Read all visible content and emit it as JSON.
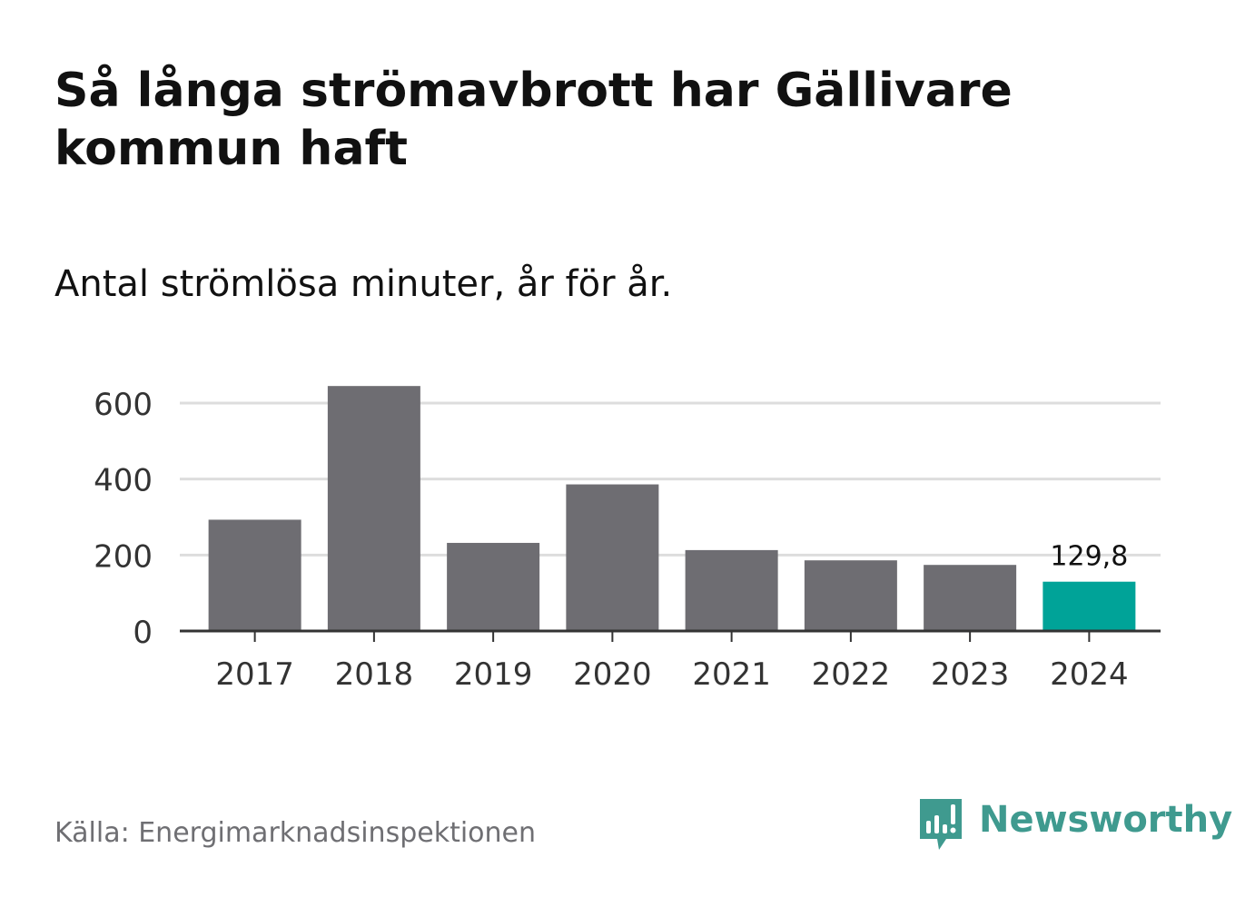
{
  "title": "Så långa strömavbrott har Gällivare kommun haft",
  "subtitle": "Antal strömlösa minuter, år för år.",
  "source": "Källa: Energimarknadsinspektionen",
  "brand": {
    "name": "Newsworthy",
    "icon": "newsworthy-logo-icon",
    "color": "#3f9a8f"
  },
  "colors": {
    "bar": "#6e6d72",
    "highlight": "#00a398",
    "grid": "#dddddd",
    "axis": "#333333",
    "text": "#333333"
  },
  "chart_data": {
    "type": "bar",
    "title": "Så långa strömavbrott har Gällivare kommun haft",
    "subtitle": "Antal strömlösa minuter, år för år.",
    "xlabel": "",
    "ylabel": "",
    "categories": [
      "2017",
      "2018",
      "2019",
      "2020",
      "2021",
      "2022",
      "2023",
      "2024"
    ],
    "values": [
      293,
      645,
      232,
      386,
      213,
      186,
      174,
      129.8
    ],
    "highlight_index": 7,
    "data_labels": [
      {
        "index": 7,
        "text": "129,8"
      }
    ],
    "yticks": [
      0,
      200,
      400,
      600
    ],
    "ytick_labels": [
      "0",
      "200",
      "400",
      "600"
    ],
    "ylim": [
      0,
      660
    ],
    "grid": true
  }
}
